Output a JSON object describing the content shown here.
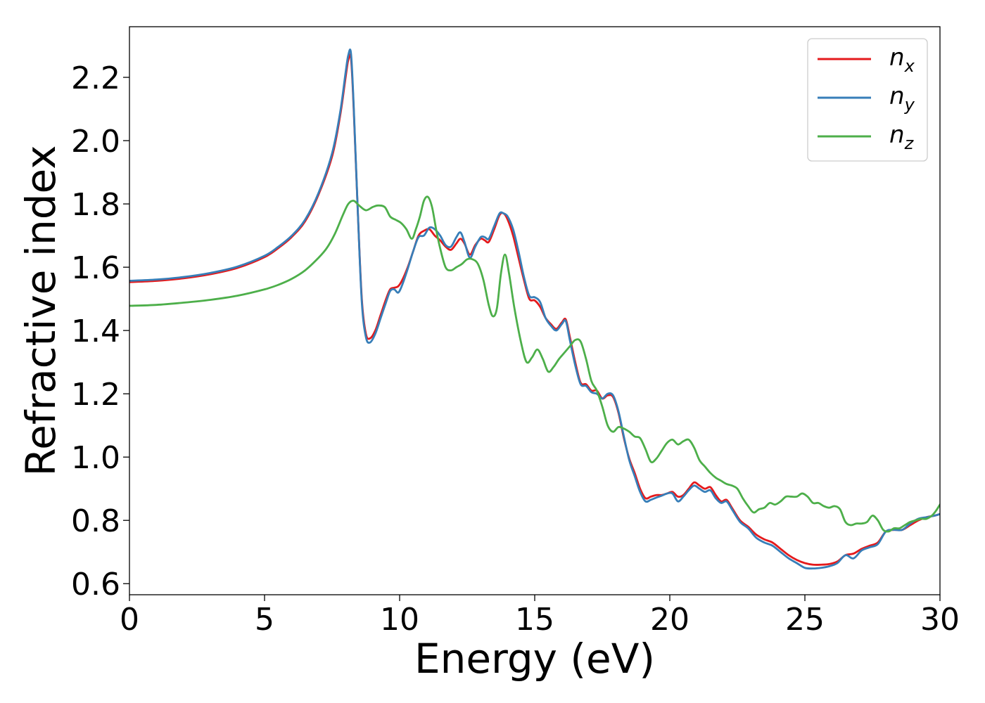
{
  "chart_data": {
    "type": "line",
    "title": "",
    "xlabel": "Energy (eV)",
    "ylabel": "Refractive index",
    "xlim": [
      0,
      30
    ],
    "ylim": [
      0.565,
      2.36
    ],
    "xticks": [
      0,
      5,
      10,
      15,
      20,
      25,
      30
    ],
    "xtick_labels": [
      "0",
      "5",
      "10",
      "15",
      "20",
      "25",
      "30"
    ],
    "yticks": [
      0.6,
      0.8,
      1.0,
      1.2,
      1.4,
      1.6,
      1.8,
      2.0,
      2.2
    ],
    "ytick_labels": [
      "0.6",
      "0.8",
      "1.0",
      "1.2",
      "1.4",
      "1.6",
      "1.8",
      "2.0",
      "2.2"
    ],
    "grid": false,
    "legend_position": "top-right",
    "series": [
      {
        "name_base": "n",
        "name_sub": "x",
        "color": "#e41a1c",
        "x": [
          0,
          1,
          2,
          3,
          4,
          5,
          5.5,
          6,
          6.5,
          7,
          7.5,
          7.8,
          8.0,
          8.1,
          8.2,
          8.3,
          8.45,
          8.6,
          8.75,
          8.9,
          9.1,
          9.3,
          9.5,
          9.65,
          9.8,
          9.95,
          10.1,
          10.3,
          10.5,
          10.7,
          10.9,
          11.1,
          11.3,
          11.5,
          11.7,
          11.9,
          12.1,
          12.25,
          12.4,
          12.6,
          12.8,
          13.0,
          13.15,
          13.3,
          13.5,
          13.7,
          13.85,
          14.0,
          14.2,
          14.4,
          14.6,
          14.8,
          15.0,
          15.2,
          15.4,
          15.6,
          15.8,
          16.0,
          16.15,
          16.3,
          16.5,
          16.7,
          16.9,
          17.1,
          17.3,
          17.5,
          17.7,
          17.9,
          18.1,
          18.3,
          18.5,
          18.7,
          18.9,
          19.1,
          19.3,
          19.5,
          19.7,
          19.9,
          20.1,
          20.3,
          20.5,
          20.7,
          20.9,
          21.1,
          21.3,
          21.5,
          21.7,
          21.9,
          22.1,
          22.3,
          22.6,
          22.9,
          23.2,
          23.5,
          23.8,
          24.1,
          24.4,
          24.7,
          25.0,
          25.3,
          25.6,
          25.9,
          26.2,
          26.5,
          26.8,
          27.1,
          27.4,
          27.7,
          28.0,
          28.3,
          28.6,
          28.9,
          29.2,
          29.5,
          29.8,
          30.0
        ],
        "y": [
          1.553,
          1.557,
          1.565,
          1.578,
          1.598,
          1.632,
          1.66,
          1.695,
          1.745,
          1.83,
          1.95,
          2.08,
          2.2,
          2.255,
          2.26,
          2.1,
          1.78,
          1.5,
          1.39,
          1.375,
          1.4,
          1.45,
          1.5,
          1.53,
          1.535,
          1.54,
          1.56,
          1.6,
          1.65,
          1.7,
          1.715,
          1.72,
          1.7,
          1.685,
          1.665,
          1.655,
          1.675,
          1.69,
          1.675,
          1.64,
          1.67,
          1.69,
          1.685,
          1.68,
          1.72,
          1.765,
          1.77,
          1.75,
          1.7,
          1.63,
          1.56,
          1.5,
          1.495,
          1.475,
          1.44,
          1.42,
          1.405,
          1.425,
          1.435,
          1.38,
          1.3,
          1.235,
          1.23,
          1.21,
          1.21,
          1.185,
          1.195,
          1.19,
          1.14,
          1.06,
          0.995,
          0.95,
          0.9,
          0.87,
          0.875,
          0.88,
          0.88,
          0.885,
          0.89,
          0.875,
          0.88,
          0.9,
          0.92,
          0.91,
          0.9,
          0.905,
          0.88,
          0.86,
          0.865,
          0.84,
          0.8,
          0.78,
          0.755,
          0.74,
          0.73,
          0.71,
          0.69,
          0.675,
          0.665,
          0.66,
          0.66,
          0.662,
          0.67,
          0.69,
          0.695,
          0.71,
          0.72,
          0.73,
          0.765,
          0.77,
          0.77,
          0.785,
          0.8,
          0.81,
          0.815,
          0.82
        ]
      },
      {
        "name_base": "n",
        "name_sub": "y",
        "color": "#377eb8",
        "x": [
          0,
          1,
          2,
          3,
          4,
          5,
          5.5,
          6,
          6.5,
          7,
          7.5,
          7.8,
          8.0,
          8.1,
          8.2,
          8.3,
          8.45,
          8.6,
          8.75,
          8.9,
          9.1,
          9.3,
          9.5,
          9.65,
          9.8,
          9.95,
          10.1,
          10.3,
          10.5,
          10.7,
          10.9,
          11.1,
          11.3,
          11.5,
          11.7,
          11.9,
          12.1,
          12.25,
          12.4,
          12.6,
          12.8,
          13.0,
          13.15,
          13.3,
          13.5,
          13.7,
          13.85,
          14.0,
          14.2,
          14.4,
          14.6,
          14.8,
          15.0,
          15.2,
          15.4,
          15.6,
          15.8,
          16.0,
          16.15,
          16.3,
          16.5,
          16.7,
          16.9,
          17.1,
          17.3,
          17.5,
          17.7,
          17.9,
          18.1,
          18.3,
          18.5,
          18.7,
          18.9,
          19.1,
          19.3,
          19.5,
          19.7,
          19.9,
          20.1,
          20.3,
          20.5,
          20.7,
          20.9,
          21.1,
          21.3,
          21.5,
          21.7,
          21.9,
          22.1,
          22.3,
          22.6,
          22.9,
          23.2,
          23.5,
          23.8,
          24.1,
          24.4,
          24.7,
          25.0,
          25.3,
          25.6,
          25.9,
          26.2,
          26.5,
          26.8,
          27.1,
          27.4,
          27.7,
          28.0,
          28.3,
          28.6,
          28.9,
          29.2,
          29.5,
          29.8,
          30.0
        ],
        "y": [
          1.557,
          1.561,
          1.569,
          1.582,
          1.602,
          1.636,
          1.664,
          1.699,
          1.75,
          1.835,
          1.96,
          2.09,
          2.215,
          2.27,
          2.275,
          2.11,
          1.78,
          1.49,
          1.38,
          1.362,
          1.39,
          1.44,
          1.49,
          1.525,
          1.53,
          1.52,
          1.545,
          1.595,
          1.65,
          1.695,
          1.7,
          1.725,
          1.72,
          1.7,
          1.67,
          1.665,
          1.695,
          1.71,
          1.68,
          1.63,
          1.665,
          1.695,
          1.695,
          1.69,
          1.73,
          1.77,
          1.77,
          1.76,
          1.72,
          1.65,
          1.57,
          1.51,
          1.505,
          1.49,
          1.44,
          1.415,
          1.4,
          1.42,
          1.43,
          1.37,
          1.29,
          1.23,
          1.225,
          1.205,
          1.2,
          1.185,
          1.2,
          1.195,
          1.145,
          1.065,
          0.99,
          0.94,
          0.89,
          0.86,
          0.865,
          0.872,
          0.878,
          0.885,
          0.885,
          0.86,
          0.875,
          0.895,
          0.91,
          0.9,
          0.89,
          0.895,
          0.87,
          0.855,
          0.86,
          0.835,
          0.795,
          0.775,
          0.745,
          0.73,
          0.72,
          0.7,
          0.68,
          0.665,
          0.65,
          0.648,
          0.65,
          0.655,
          0.665,
          0.69,
          0.68,
          0.705,
          0.715,
          0.725,
          0.765,
          0.77,
          0.77,
          0.79,
          0.805,
          0.81,
          0.815,
          0.82
        ]
      },
      {
        "name_base": "n",
        "name_sub": "z",
        "color": "#4daf4a",
        "x": [
          0,
          1,
          2,
          3,
          4,
          5,
          5.5,
          6,
          6.5,
          7,
          7.3,
          7.6,
          7.9,
          8.1,
          8.3,
          8.5,
          8.75,
          9.0,
          9.2,
          9.45,
          9.65,
          9.85,
          10.05,
          10.25,
          10.45,
          10.6,
          10.75,
          10.9,
          11.05,
          11.2,
          11.35,
          11.5,
          11.7,
          11.9,
          12.1,
          12.3,
          12.5,
          12.7,
          12.9,
          13.1,
          13.3,
          13.45,
          13.6,
          13.75,
          13.9,
          14.05,
          14.25,
          14.5,
          14.7,
          14.9,
          15.1,
          15.3,
          15.5,
          15.7,
          15.9,
          16.1,
          16.3,
          16.5,
          16.7,
          16.9,
          17.1,
          17.3,
          17.5,
          17.7,
          17.9,
          18.1,
          18.3,
          18.5,
          18.7,
          18.9,
          19.1,
          19.3,
          19.5,
          19.7,
          19.9,
          20.1,
          20.3,
          20.5,
          20.7,
          20.9,
          21.1,
          21.3,
          21.5,
          21.7,
          21.9,
          22.1,
          22.3,
          22.5,
          22.7,
          22.9,
          23.1,
          23.3,
          23.5,
          23.7,
          23.9,
          24.1,
          24.3,
          24.5,
          24.7,
          24.9,
          25.1,
          25.3,
          25.5,
          25.7,
          25.9,
          26.1,
          26.3,
          26.5,
          26.7,
          26.9,
          27.1,
          27.3,
          27.5,
          27.7,
          27.9,
          28.1,
          28.3,
          28.5,
          28.7,
          28.9,
          29.1,
          29.3,
          29.5,
          29.7,
          29.85,
          30.0
        ],
        "y": [
          1.478,
          1.481,
          1.488,
          1.497,
          1.51,
          1.53,
          1.544,
          1.563,
          1.59,
          1.63,
          1.66,
          1.705,
          1.765,
          1.8,
          1.81,
          1.795,
          1.78,
          1.79,
          1.795,
          1.79,
          1.76,
          1.75,
          1.74,
          1.72,
          1.69,
          1.72,
          1.76,
          1.81,
          1.822,
          1.79,
          1.72,
          1.66,
          1.6,
          1.59,
          1.6,
          1.61,
          1.625,
          1.625,
          1.61,
          1.56,
          1.48,
          1.445,
          1.47,
          1.58,
          1.64,
          1.58,
          1.47,
          1.36,
          1.3,
          1.315,
          1.34,
          1.31,
          1.27,
          1.285,
          1.31,
          1.33,
          1.35,
          1.37,
          1.365,
          1.31,
          1.24,
          1.21,
          1.16,
          1.1,
          1.08,
          1.095,
          1.09,
          1.08,
          1.065,
          1.06,
          1.025,
          0.985,
          0.995,
          1.02,
          1.045,
          1.055,
          1.04,
          1.05,
          1.055,
          1.03,
          0.99,
          0.97,
          0.95,
          0.935,
          0.925,
          0.915,
          0.91,
          0.9,
          0.87,
          0.845,
          0.825,
          0.835,
          0.84,
          0.855,
          0.85,
          0.86,
          0.875,
          0.875,
          0.875,
          0.885,
          0.875,
          0.855,
          0.855,
          0.845,
          0.84,
          0.845,
          0.835,
          0.795,
          0.785,
          0.79,
          0.79,
          0.795,
          0.815,
          0.8,
          0.77,
          0.765,
          0.775,
          0.775,
          0.785,
          0.795,
          0.8,
          0.805,
          0.805,
          0.815,
          0.83,
          0.85
        ]
      }
    ]
  }
}
